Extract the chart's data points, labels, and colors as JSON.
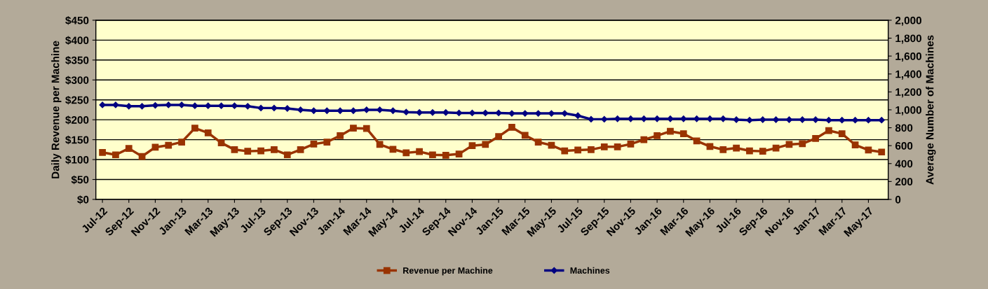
{
  "chart_data": {
    "type": "line",
    "categories": [
      "Jul-12",
      null,
      "Sep-12",
      null,
      "Nov-12",
      null,
      "Jan-13",
      null,
      "Mar-13",
      null,
      "May-13",
      null,
      "Jul-13",
      null,
      "Sep-13",
      null,
      "Nov-13",
      null,
      "Jan-14",
      null,
      "Mar-14",
      null,
      "May-14",
      null,
      "Jul-14",
      null,
      "Sep-14",
      null,
      "Nov-14",
      null,
      "Jan-15",
      null,
      "Mar-15",
      null,
      "May-15",
      null,
      "Jul-15",
      null,
      "Sep-15",
      null,
      "Nov-15",
      null,
      "Jan-16",
      null,
      "Mar-16",
      null,
      "May-16",
      null,
      "Jul-16",
      null,
      "Sep-16",
      null,
      "Nov-16",
      null,
      "Jan-17",
      null,
      "Mar-17",
      null,
      "May-17",
      null
    ],
    "series": [
      {
        "name": "Revenue per Machine",
        "color": "#993300",
        "marker": "square",
        "values": [
          118,
          112,
          128,
          108,
          131,
          136,
          144,
          179,
          167,
          142,
          125,
          121,
          122,
          125,
          112,
          125,
          139,
          144,
          160,
          179,
          178,
          138,
          126,
          117,
          120,
          112,
          111,
          114,
          135,
          138,
          158,
          181,
          161,
          144,
          136,
          122,
          124,
          125,
          132,
          132,
          139,
          150,
          160,
          171,
          165,
          147,
          133,
          125,
          129,
          122,
          121,
          129,
          138,
          140,
          153,
          173,
          165,
          137,
          124,
          119
        ]
      },
      {
        "name": "Machines",
        "color": "#000080",
        "marker": "diamond",
        "axis": "y2",
        "values": [
          1055,
          1055,
          1040,
          1040,
          1050,
          1055,
          1055,
          1045,
          1045,
          1045,
          1045,
          1040,
          1020,
          1020,
          1015,
          1000,
          990,
          990,
          990,
          990,
          1000,
          1000,
          990,
          975,
          970,
          970,
          970,
          965,
          965,
          965,
          965,
          960,
          960,
          960,
          960,
          960,
          935,
          895,
          895,
          900,
          900,
          900,
          900,
          900,
          900,
          900,
          900,
          900,
          890,
          885,
          890,
          890,
          890,
          890,
          890,
          885,
          885,
          885,
          885,
          885
        ]
      }
    ],
    "ylabel": "Daily Revenue per Machine",
    "y2label": "Average Number of Machines",
    "ylim": [
      0,
      450
    ],
    "yticks": [
      {
        "value": 0,
        "label": "$0"
      },
      {
        "value": 50,
        "label": "$50"
      },
      {
        "value": 100,
        "label": "$100"
      },
      {
        "value": 150,
        "label": "$150"
      },
      {
        "value": 200,
        "label": "$200"
      },
      {
        "value": 250,
        "label": "$250"
      },
      {
        "value": 300,
        "label": "$300"
      },
      {
        "value": 350,
        "label": "$350"
      },
      {
        "value": 400,
        "label": "$400"
      },
      {
        "value": 450,
        "label": "$450"
      }
    ],
    "y2lim": [
      0,
      2000
    ],
    "y2ticks": [
      0,
      200,
      400,
      600,
      800,
      {
        "value": 1000,
        "label": "1,000"
      },
      {
        "value": 1200,
        "label": "1,200"
      },
      {
        "value": 1400,
        "label": "1,400"
      },
      {
        "value": 1600,
        "label": "1,600"
      },
      {
        "value": 1800,
        "label": "1,800"
      },
      {
        "value": 2000,
        "label": "2,000"
      }
    ],
    "grid": "y",
    "legend": "bottom",
    "line_style": "solid"
  }
}
